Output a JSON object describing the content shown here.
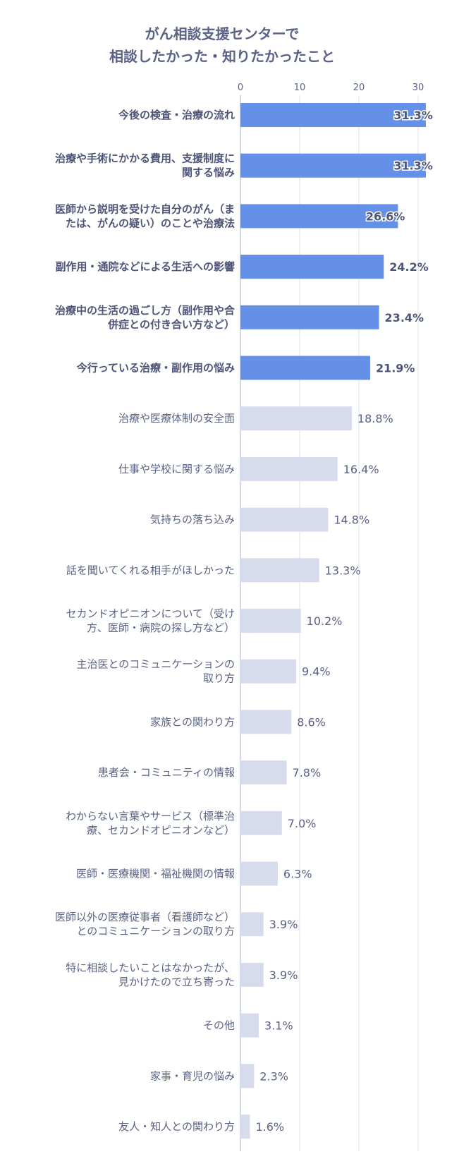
{
  "chart_data": {
    "type": "bar",
    "orientation": "horizontal",
    "title": [
      "がん相談支援センターで",
      "相談したかった・知りたかったこと"
    ],
    "xlabel": "",
    "ylabel": "",
    "xlim": [
      0,
      31.3
    ],
    "xticks": [
      0,
      10,
      20,
      30
    ],
    "grid": true,
    "unit": "%",
    "colors": {
      "highlight": "#6490E8",
      "normal": "#D6DCEC",
      "text": "#5A6285",
      "grid": "#DDE2EE"
    },
    "categories": [
      [
        "今後の検査・治療の流れ"
      ],
      [
        "治療や手術にかかる費用、支援制度に",
        "関する悩み"
      ],
      [
        "医師から説明を受けた自分のがん（ま",
        "たは、がんの疑い）のことや治療法"
      ],
      [
        "副作用・通院などによる生活への影響"
      ],
      [
        "治療中の生活の過ごし方（副作用や合",
        "併症との付き合い方など）"
      ],
      [
        "今行っている治療・副作用の悩み"
      ],
      [
        "治療や医療体制の安全面"
      ],
      [
        "仕事や学校に関する悩み"
      ],
      [
        "気持ちの落ち込み"
      ],
      [
        "話を聞いてくれる相手がほしかった"
      ],
      [
        "セカンドオピニオンについて（受け",
        "方、医師・病院の探し方など）"
      ],
      [
        "主治医とのコミュニケーションの",
        "取り方"
      ],
      [
        "家族との関わり方"
      ],
      [
        "患者会・コミュニティの情報"
      ],
      [
        "わからない言葉やサービス（標準治",
        "療、セカンドオピニオンなど）"
      ],
      [
        "医師・医療機関・福祉機関の情報"
      ],
      [
        "医師以外の医療従事者（看護師など）",
        "とのコミュニケーションの取り方"
      ],
      [
        "特に相談したいことはなかったが、",
        "見かけたので立ち寄った"
      ],
      [
        "その他"
      ],
      [
        "家事・育児の悩み"
      ],
      [
        "友人・知人との関わり方"
      ]
    ],
    "values": [
      31.3,
      31.3,
      26.6,
      24.2,
      23.4,
      21.9,
      18.8,
      16.4,
      14.8,
      13.3,
      10.2,
      9.4,
      8.6,
      7.8,
      7.0,
      6.3,
      3.9,
      3.9,
      3.1,
      2.3,
      1.6
    ],
    "value_labels": [
      "31.3%",
      "31.3%",
      "26.6%",
      "24.2%",
      "23.4%",
      "21.9%",
      "18.8%",
      "16.4%",
      "14.8%",
      "13.3%",
      "10.2%",
      "9.4%",
      "8.6%",
      "7.8%",
      "7.0%",
      "6.3%",
      "3.9%",
      "3.9%",
      "3.1%",
      "2.3%",
      "1.6%"
    ],
    "highlighted_count": 6
  }
}
